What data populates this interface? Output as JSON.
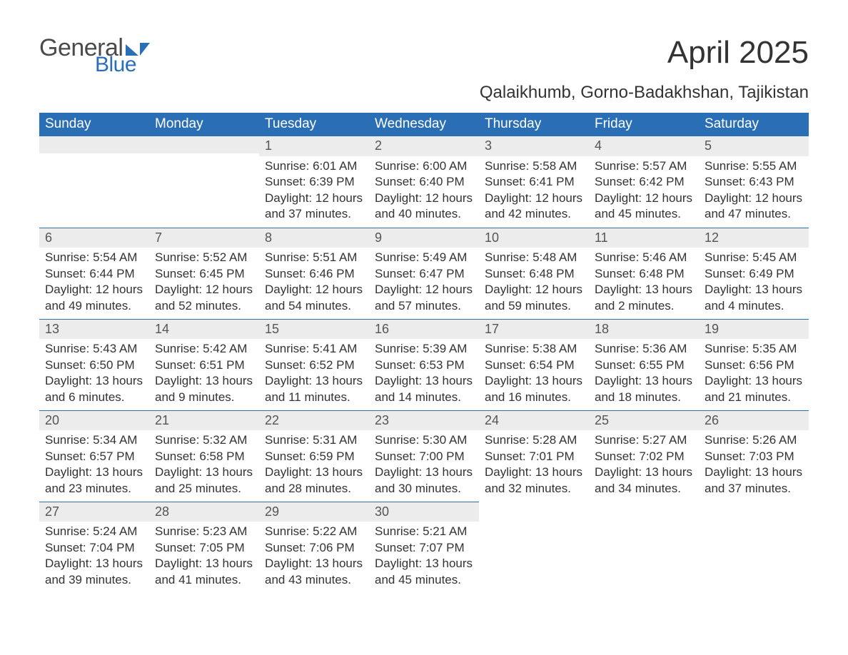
{
  "logo": {
    "text_general": "General",
    "text_blue": "Blue",
    "flag_color": "#2a6fb5"
  },
  "title": "April 2025",
  "location": "Qalaikhumb, Gorno-Badakhshan, Tajikistan",
  "colors": {
    "header_bg": "#2a6fb5",
    "header_text": "#ffffff",
    "daynum_bg": "#ececec",
    "border": "#2a6fb5",
    "body_text": "#333333"
  },
  "weekdays": [
    "Sunday",
    "Monday",
    "Tuesday",
    "Wednesday",
    "Thursday",
    "Friday",
    "Saturday"
  ],
  "weeks": [
    [
      {
        "day": "",
        "lines": []
      },
      {
        "day": "",
        "lines": []
      },
      {
        "day": "1",
        "lines": [
          "Sunrise: 6:01 AM",
          "Sunset: 6:39 PM",
          "Daylight: 12 hours and 37 minutes."
        ]
      },
      {
        "day": "2",
        "lines": [
          "Sunrise: 6:00 AM",
          "Sunset: 6:40 PM",
          "Daylight: 12 hours and 40 minutes."
        ]
      },
      {
        "day": "3",
        "lines": [
          "Sunrise: 5:58 AM",
          "Sunset: 6:41 PM",
          "Daylight: 12 hours and 42 minutes."
        ]
      },
      {
        "day": "4",
        "lines": [
          "Sunrise: 5:57 AM",
          "Sunset: 6:42 PM",
          "Daylight: 12 hours and 45 minutes."
        ]
      },
      {
        "day": "5",
        "lines": [
          "Sunrise: 5:55 AM",
          "Sunset: 6:43 PM",
          "Daylight: 12 hours and 47 minutes."
        ]
      }
    ],
    [
      {
        "day": "6",
        "lines": [
          "Sunrise: 5:54 AM",
          "Sunset: 6:44 PM",
          "Daylight: 12 hours and 49 minutes."
        ]
      },
      {
        "day": "7",
        "lines": [
          "Sunrise: 5:52 AM",
          "Sunset: 6:45 PM",
          "Daylight: 12 hours and 52 minutes."
        ]
      },
      {
        "day": "8",
        "lines": [
          "Sunrise: 5:51 AM",
          "Sunset: 6:46 PM",
          "Daylight: 12 hours and 54 minutes."
        ]
      },
      {
        "day": "9",
        "lines": [
          "Sunrise: 5:49 AM",
          "Sunset: 6:47 PM",
          "Daylight: 12 hours and 57 minutes."
        ]
      },
      {
        "day": "10",
        "lines": [
          "Sunrise: 5:48 AM",
          "Sunset: 6:48 PM",
          "Daylight: 12 hours and 59 minutes."
        ]
      },
      {
        "day": "11",
        "lines": [
          "Sunrise: 5:46 AM",
          "Sunset: 6:48 PM",
          "Daylight: 13 hours and 2 minutes."
        ]
      },
      {
        "day": "12",
        "lines": [
          "Sunrise: 5:45 AM",
          "Sunset: 6:49 PM",
          "Daylight: 13 hours and 4 minutes."
        ]
      }
    ],
    [
      {
        "day": "13",
        "lines": [
          "Sunrise: 5:43 AM",
          "Sunset: 6:50 PM",
          "Daylight: 13 hours and 6 minutes."
        ]
      },
      {
        "day": "14",
        "lines": [
          "Sunrise: 5:42 AM",
          "Sunset: 6:51 PM",
          "Daylight: 13 hours and 9 minutes."
        ]
      },
      {
        "day": "15",
        "lines": [
          "Sunrise: 5:41 AM",
          "Sunset: 6:52 PM",
          "Daylight: 13 hours and 11 minutes."
        ]
      },
      {
        "day": "16",
        "lines": [
          "Sunrise: 5:39 AM",
          "Sunset: 6:53 PM",
          "Daylight: 13 hours and 14 minutes."
        ]
      },
      {
        "day": "17",
        "lines": [
          "Sunrise: 5:38 AM",
          "Sunset: 6:54 PM",
          "Daylight: 13 hours and 16 minutes."
        ]
      },
      {
        "day": "18",
        "lines": [
          "Sunrise: 5:36 AM",
          "Sunset: 6:55 PM",
          "Daylight: 13 hours and 18 minutes."
        ]
      },
      {
        "day": "19",
        "lines": [
          "Sunrise: 5:35 AM",
          "Sunset: 6:56 PM",
          "Daylight: 13 hours and 21 minutes."
        ]
      }
    ],
    [
      {
        "day": "20",
        "lines": [
          "Sunrise: 5:34 AM",
          "Sunset: 6:57 PM",
          "Daylight: 13 hours and 23 minutes."
        ]
      },
      {
        "day": "21",
        "lines": [
          "Sunrise: 5:32 AM",
          "Sunset: 6:58 PM",
          "Daylight: 13 hours and 25 minutes."
        ]
      },
      {
        "day": "22",
        "lines": [
          "Sunrise: 5:31 AM",
          "Sunset: 6:59 PM",
          "Daylight: 13 hours and 28 minutes."
        ]
      },
      {
        "day": "23",
        "lines": [
          "Sunrise: 5:30 AM",
          "Sunset: 7:00 PM",
          "Daylight: 13 hours and 30 minutes."
        ]
      },
      {
        "day": "24",
        "lines": [
          "Sunrise: 5:28 AM",
          "Sunset: 7:01 PM",
          "Daylight: 13 hours and 32 minutes."
        ]
      },
      {
        "day": "25",
        "lines": [
          "Sunrise: 5:27 AM",
          "Sunset: 7:02 PM",
          "Daylight: 13 hours and 34 minutes."
        ]
      },
      {
        "day": "26",
        "lines": [
          "Sunrise: 5:26 AM",
          "Sunset: 7:03 PM",
          "Daylight: 13 hours and 37 minutes."
        ]
      }
    ],
    [
      {
        "day": "27",
        "lines": [
          "Sunrise: 5:24 AM",
          "Sunset: 7:04 PM",
          "Daylight: 13 hours and 39 minutes."
        ]
      },
      {
        "day": "28",
        "lines": [
          "Sunrise: 5:23 AM",
          "Sunset: 7:05 PM",
          "Daylight: 13 hours and 41 minutes."
        ]
      },
      {
        "day": "29",
        "lines": [
          "Sunrise: 5:22 AM",
          "Sunset: 7:06 PM",
          "Daylight: 13 hours and 43 minutes."
        ]
      },
      {
        "day": "30",
        "lines": [
          "Sunrise: 5:21 AM",
          "Sunset: 7:07 PM",
          "Daylight: 13 hours and 45 minutes."
        ]
      },
      {
        "day": "",
        "lines": []
      },
      {
        "day": "",
        "lines": []
      },
      {
        "day": "",
        "lines": []
      }
    ]
  ]
}
